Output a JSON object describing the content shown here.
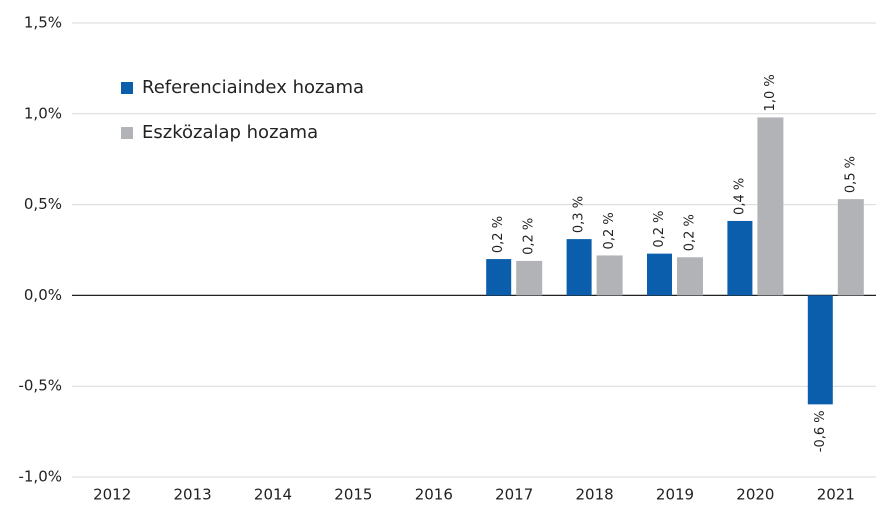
{
  "chart_data": {
    "type": "bar",
    "categories": [
      "2012",
      "2013",
      "2014",
      "2015",
      "2016",
      "2017",
      "2018",
      "2019",
      "2020",
      "2021"
    ],
    "series": [
      {
        "name": "Referenciaindex hozama",
        "color": "#0a5eab",
        "values": [
          null,
          null,
          null,
          null,
          null,
          0.2,
          0.31,
          0.23,
          0.41,
          -0.6
        ],
        "value_labels": [
          null,
          null,
          null,
          null,
          null,
          "0,2 %",
          "0,3 %",
          "0,2 %",
          "0,4 %",
          "-0,6 %"
        ]
      },
      {
        "name": "Eszközalap hozama",
        "color": "#b1b3b6",
        "values": [
          null,
          null,
          null,
          null,
          null,
          0.19,
          0.22,
          0.21,
          0.98,
          0.53
        ],
        "value_labels": [
          null,
          null,
          null,
          null,
          null,
          "0,2 %",
          "0,2 %",
          "0,2 %",
          "1,0 %",
          "0,5 %"
        ]
      }
    ],
    "ylim": [
      -1.0,
      1.5
    ],
    "yticks": [
      {
        "value": -1.0,
        "label": "-1,0%"
      },
      {
        "value": -0.5,
        "label": "-0,5%"
      },
      {
        "value": 0,
        "label": "0,0%"
      },
      {
        "value": 0.5,
        "label": "0,5%"
      },
      {
        "value": 1.0,
        "label": "1,0%"
      },
      {
        "value": 1.5,
        "label": "1,5%"
      }
    ],
    "grid": true,
    "legend": "upper left"
  }
}
